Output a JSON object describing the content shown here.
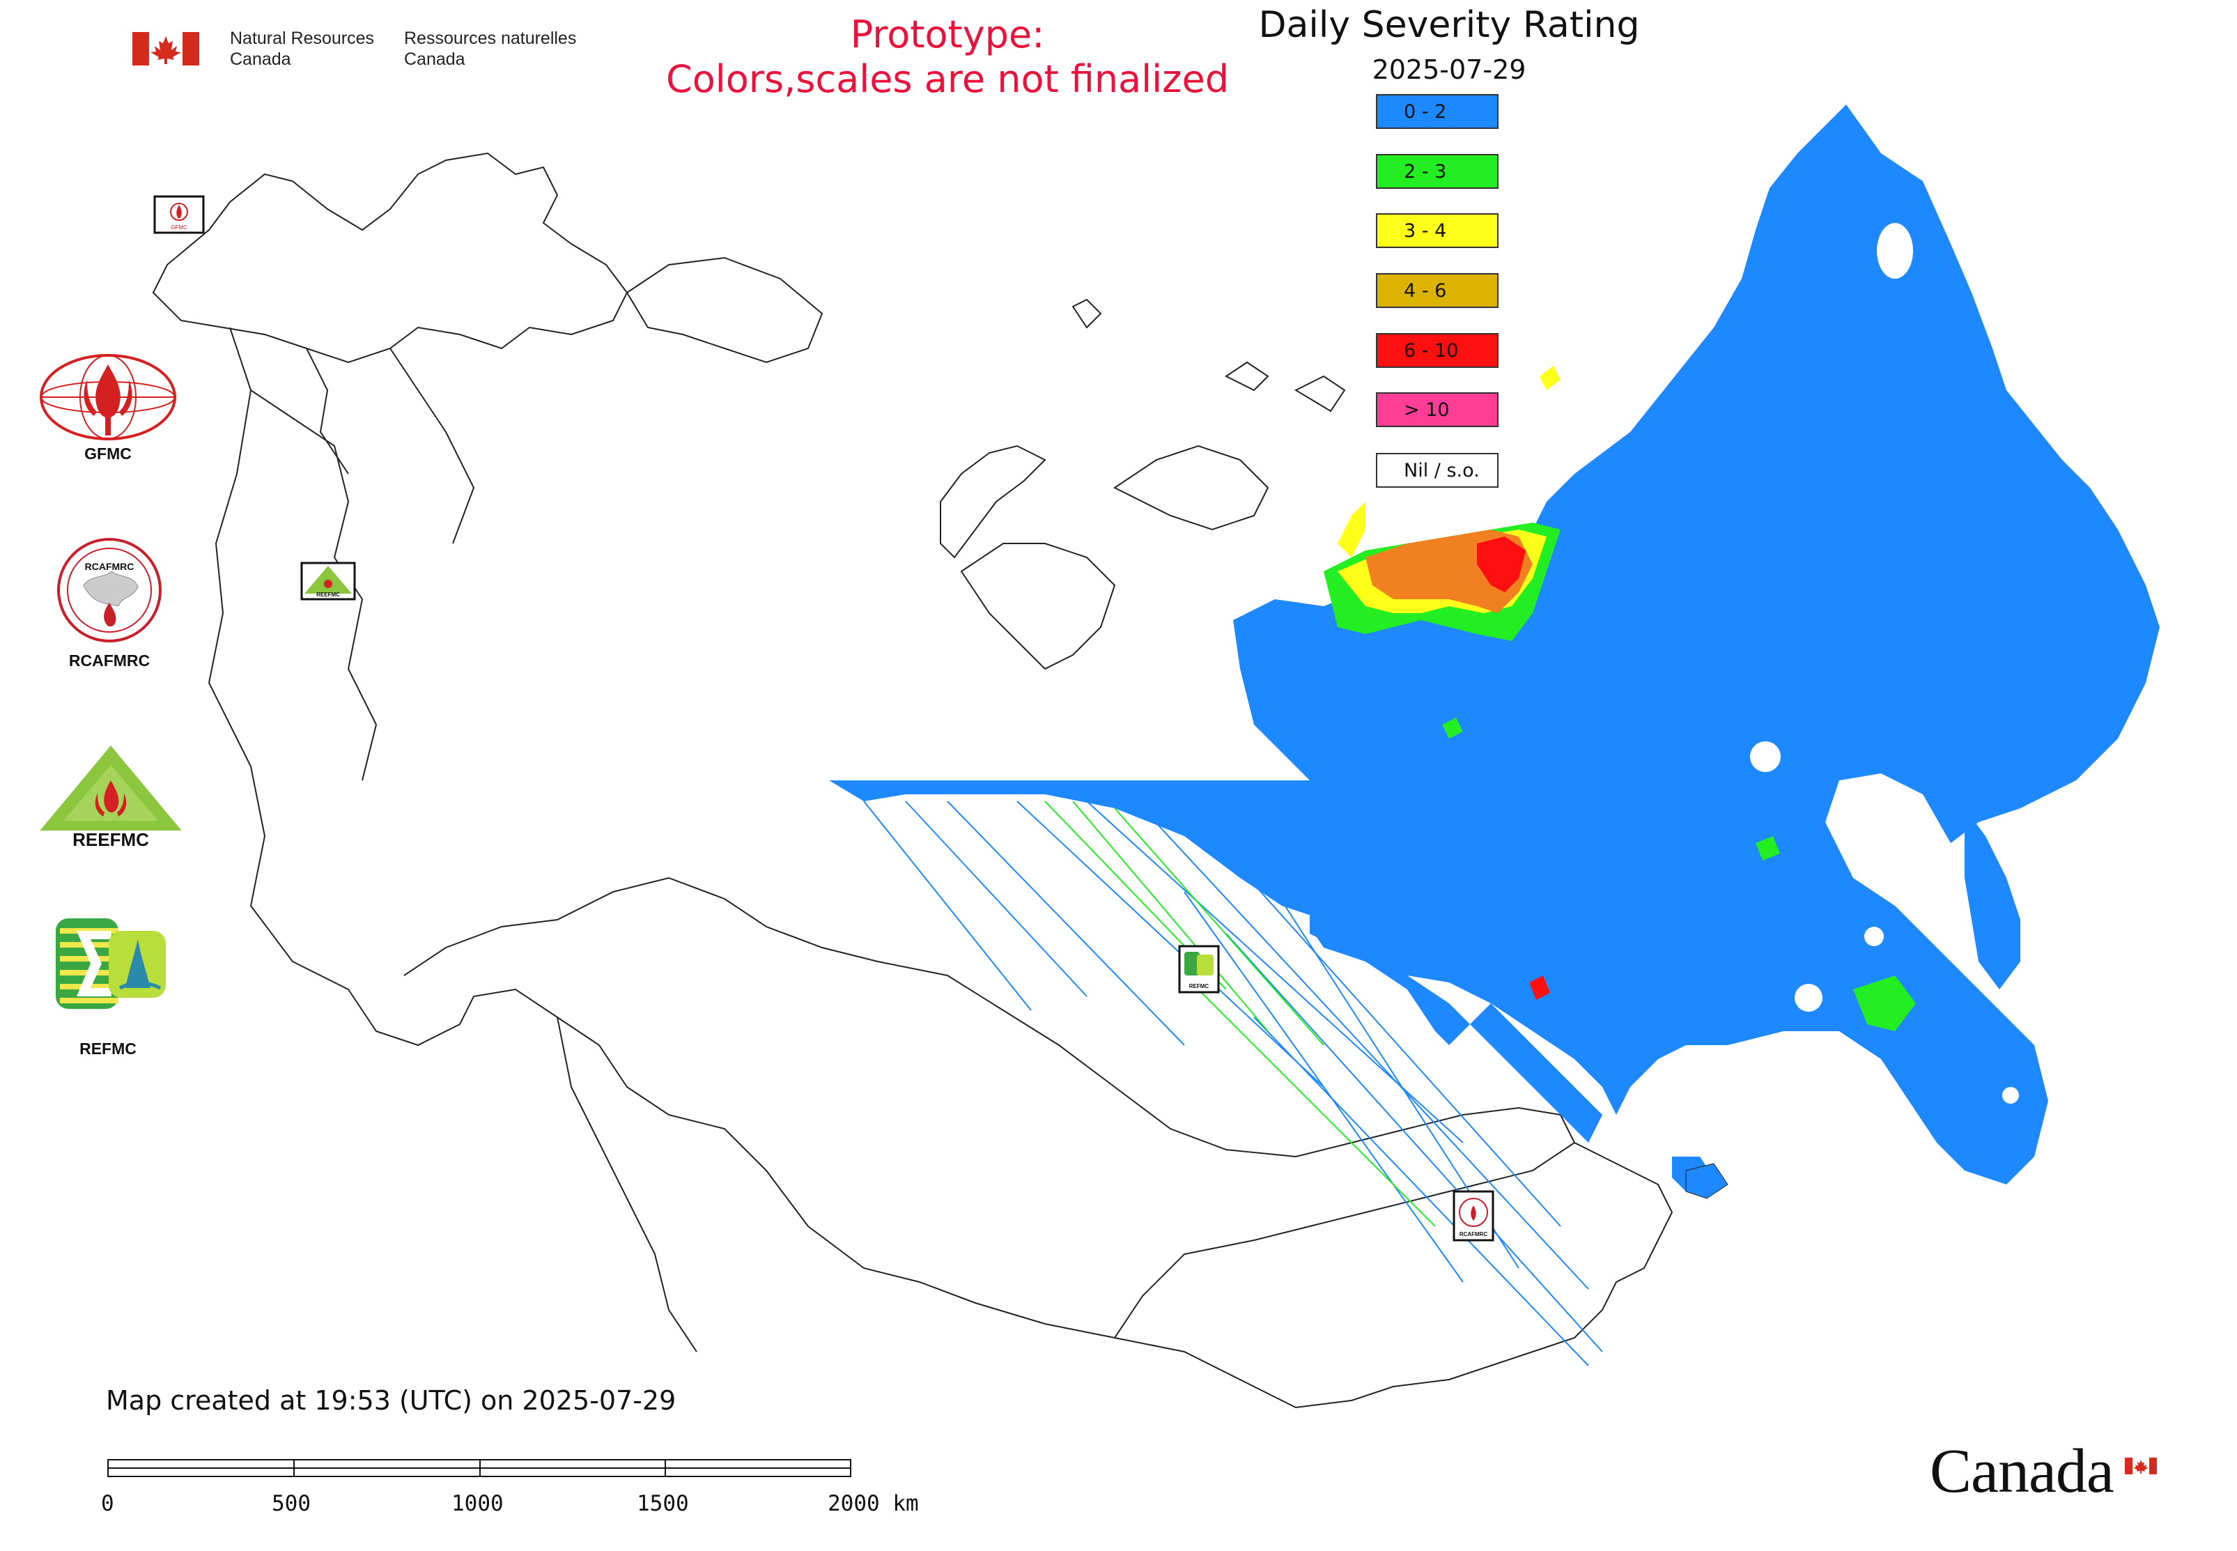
{
  "header": {
    "dept_en_line1": "Natural Resources",
    "dept_en_line2": "Canada",
    "dept_fr_line1": "Ressources naturelles",
    "dept_fr_line2": "Canada",
    "flag_color": "#d52b1e"
  },
  "prototype_notice": {
    "line1": "Prototype:",
    "line2": "Colors,scales are not finalized",
    "color": "#e8123c"
  },
  "map_title": "Daily Severity Rating",
  "map_date": "2025-07-29",
  "legend": [
    {
      "label": "0 - 2",
      "color": "#1e88ff"
    },
    {
      "label": "2 - 3",
      "color": "#22ee22"
    },
    {
      "label": "3 - 4",
      "color": "#ffff1a"
    },
    {
      "label": "4 - 6",
      "color": "#dcb400"
    },
    {
      "label": "6 - 10",
      "color": "#ff1010"
    },
    {
      "label": "> 10",
      "color": "#ff3c96"
    },
    {
      "label": "Nil / s.o.",
      "color": "#ffffff"
    }
  ],
  "logos": [
    {
      "name": "GFMC",
      "label": "GFMC"
    },
    {
      "name": "RCAFMRC",
      "label": "RCAFMRC",
      "inner_text": "RCAFMRC"
    },
    {
      "name": "REEFMC",
      "label": "",
      "inner_text": "REEFMC"
    },
    {
      "name": "REFMC",
      "label": "REFMC"
    }
  ],
  "map_markers": [
    {
      "name": "GFMC"
    },
    {
      "name": "REEFMC"
    },
    {
      "name": "REFMC"
    },
    {
      "name": "RCAFMRC"
    }
  ],
  "footer": {
    "created": "Map created at 19:53 (UTC) on 2025-07-29"
  },
  "scale_bar": {
    "ticks": [
      "0",
      "500",
      "1000",
      "1500",
      "2000 km"
    ]
  },
  "wordmark": "Canada"
}
